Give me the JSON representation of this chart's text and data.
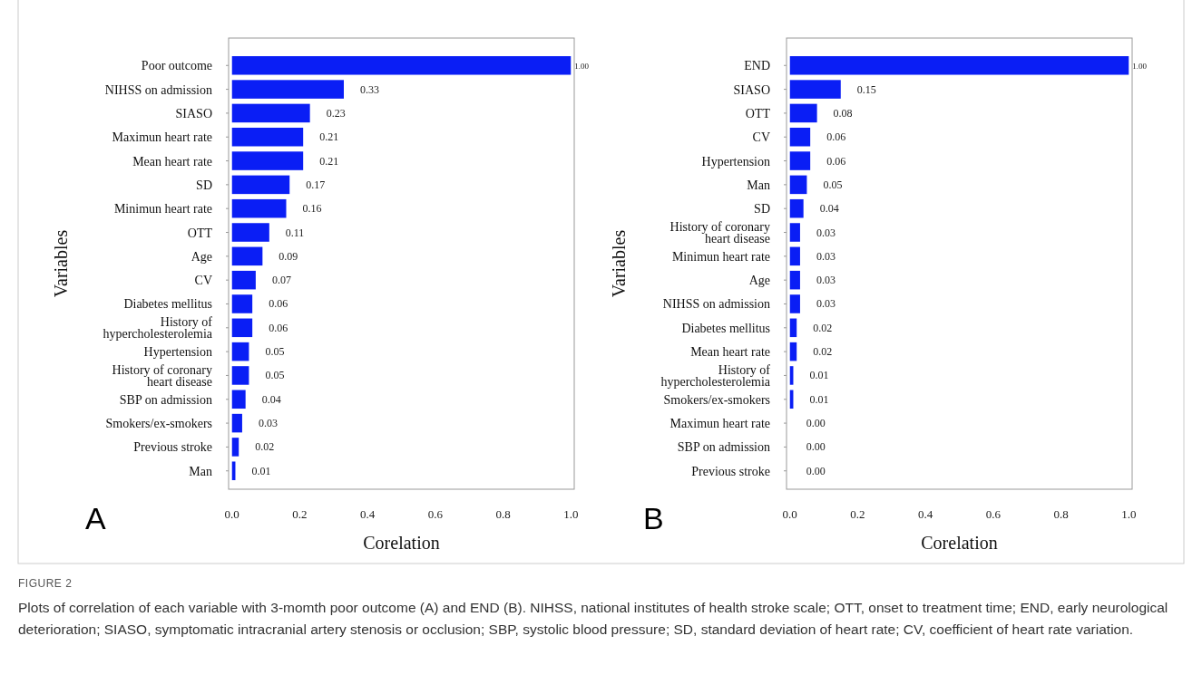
{
  "chart_data": [
    {
      "type": "bar",
      "orientation": "horizontal",
      "title": "A",
      "xlabel": "Corelation",
      "ylabel": "Variables",
      "categories": [
        "Poor outcome",
        "NIHSS on admission",
        "SIASO",
        "Maximun heart rate",
        "Mean heart rate",
        "SD",
        "Minimun heart rate",
        "OTT",
        "Age",
        "CV",
        "Diabetes mellitus",
        "History of hypercholesterolemia",
        "Hypertension",
        "History of coronary heart disease",
        "SBP on admission",
        "Smokers/ex-smokers",
        "Previous stroke",
        "Man"
      ],
      "values": [
        1.0,
        0.33,
        0.23,
        0.21,
        0.21,
        0.17,
        0.16,
        0.11,
        0.09,
        0.07,
        0.06,
        0.06,
        0.05,
        0.05,
        0.04,
        0.03,
        0.02,
        0.01
      ],
      "value_labels": [
        "1.00",
        "0.33",
        "0.23",
        "0.21",
        "0.21",
        "0.17",
        "0.16",
        "0.11",
        "0.09",
        "0.07",
        "0.06",
        "0.06",
        "0.05",
        "0.05",
        "0.04",
        "0.03",
        "0.02",
        "0.01"
      ],
      "color": "#0a1ef5",
      "xlim": [
        -0.01,
        1.01
      ],
      "xticks": [
        {
          "value": 0,
          "label": "0.0"
        },
        {
          "value": 0.2,
          "label": "0.2"
        },
        {
          "value": 0.4,
          "label": "0.4"
        },
        {
          "value": 0.6,
          "label": "0.6"
        },
        {
          "value": 0.8,
          "label": "0.8"
        },
        {
          "value": 1,
          "label": "1.0"
        }
      ],
      "grid": false,
      "annotations": [
        "FIGURE 2",
        "Plots of correlation of each variable with 3-momth poor outcome (A) and END (B). NIHSS, national institutes of health stroke scale; OTT, onset to treatment time; END, early neurological deterioration; SIASO, symptomatic intracranial artery stenosis or occlusion; SBP, systolic blood pressure; SD, standard deviation of heart rate; CV, coefficient of heart rate variation."
      ]
    },
    {
      "type": "bar",
      "orientation": "horizontal",
      "title": "B",
      "xlabel": "Corelation",
      "ylabel": "Variables",
      "categories": [
        "END",
        "SIASO",
        "OTT",
        "CV",
        "Hypertension",
        "Man",
        "SD",
        "History of coronary heart disease",
        "Minimun heart rate",
        "Age",
        "NIHSS on admission",
        "Diabetes mellitus",
        "Mean heart rate",
        "History of hypercholesterolemia",
        "Smokers/ex-smokers",
        "Maximun heart rate",
        "SBP on admission",
        "Previous stroke"
      ],
      "values": [
        1.0,
        0.15,
        0.08,
        0.06,
        0.06,
        0.05,
        0.04,
        0.03,
        0.03,
        0.03,
        0.03,
        0.02,
        0.02,
        0.01,
        0.01,
        0.0,
        0.0,
        0.0
      ],
      "value_labels": [
        "1.00",
        "0.15",
        "0.08",
        "0.06",
        "0.06",
        "0.05",
        "0.04",
        "0.03",
        "0.03",
        "0.03",
        "0.03",
        "0.02",
        "0.02",
        "0.01",
        "0.01",
        "0.00",
        "0.00",
        "0.00"
      ],
      "color": "#0a1ef5",
      "xlim": [
        -0.01,
        1.01
      ],
      "xticks": [
        {
          "value": 0,
          "label": "0.0"
        },
        {
          "value": 0.2,
          "label": "0.2"
        },
        {
          "value": 0.4,
          "label": "0.4"
        },
        {
          "value": 0.6,
          "label": "0.6"
        },
        {
          "value": 0.8,
          "label": "0.8"
        },
        {
          "value": 1,
          "label": "1.0"
        }
      ],
      "grid": false
    }
  ]
}
